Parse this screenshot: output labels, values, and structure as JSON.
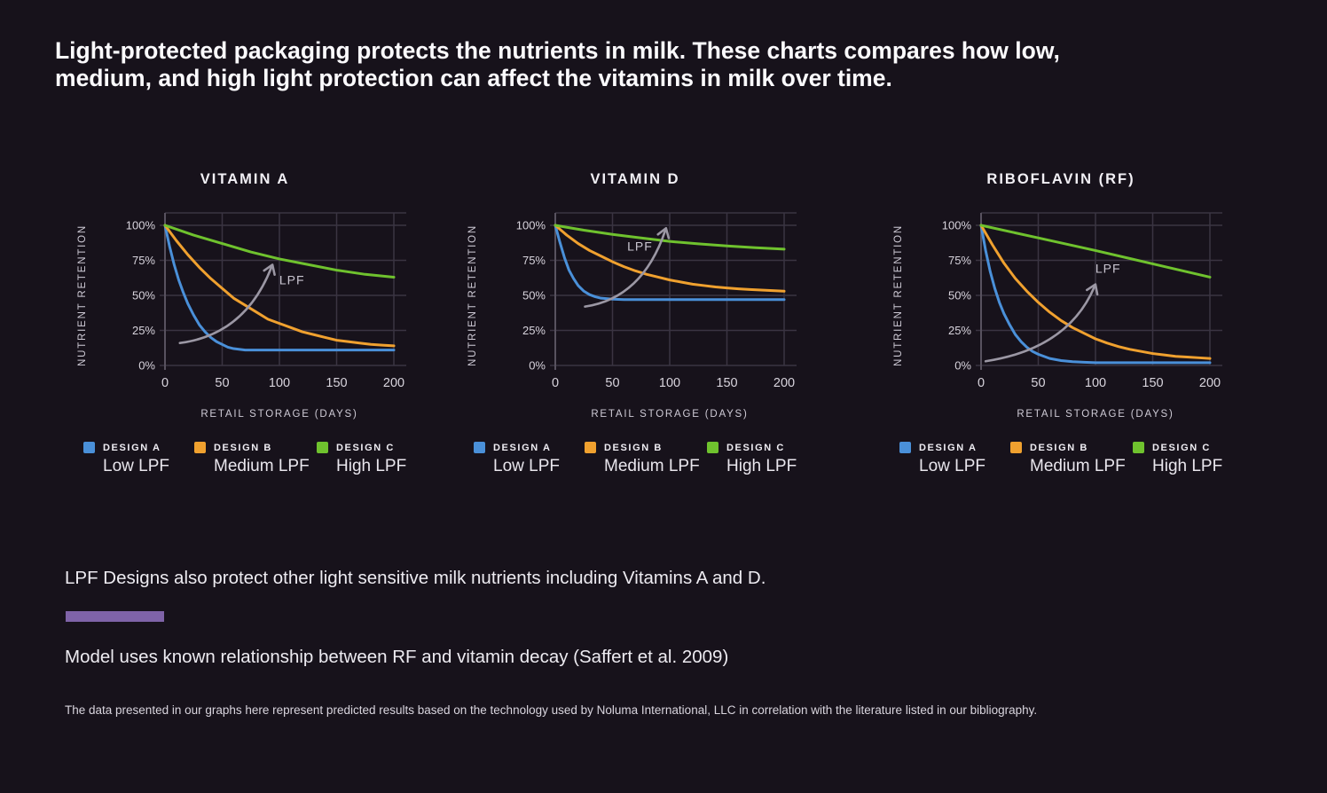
{
  "page": {
    "heading": "Light-protected packaging protects the nutrients in milk. These charts compares how low, medium, and high light protection can affect the vitamins in milk over time.",
    "note1": "LPF Designs also protect other light sensitive milk nutrients including Vitamins A and D.",
    "note2": "Model uses known relationship between RF and vitamin decay (Saffert et al. 2009)",
    "footnote": "The data presented in our graphs here  represent predicted results based on the technology used by Noluma International, LLC in correlation with the literature listed in our bibliography."
  },
  "colors": {
    "background": "#17121b",
    "grid": "#3a3442",
    "axis": "#58525f",
    "arrow": "#9b97a4",
    "accent_bar": "#7f63a8",
    "blue": "#4a90d9",
    "orange": "#f0a12f",
    "green": "#6fc22e",
    "text": "#f2f0f5"
  },
  "legend": [
    {
      "label": "DESIGN A",
      "sublabel": "Low LPF",
      "color": "#4a90d9"
    },
    {
      "label": "DESIGN B",
      "sublabel": "Medium LPF",
      "color": "#f0a12f"
    },
    {
      "label": "DESIGN C",
      "sublabel": "High LPF",
      "color": "#6fc22e"
    }
  ],
  "chart_data": [
    {
      "type": "line",
      "title": "VITAMIN A",
      "xlabel": "RETAIL STORAGE (DAYS)",
      "ylabel": "NUTRIENT RETENTION",
      "xlim": [
        0,
        200
      ],
      "ylim": [
        0,
        100
      ],
      "xticks": [
        0,
        50,
        100,
        150,
        200
      ],
      "ytick_values": [
        0,
        25,
        50,
        75,
        100
      ],
      "yticks": [
        "0%",
        "25%",
        "50%",
        "75%",
        "100%"
      ],
      "grid": true,
      "legend_position": "below",
      "annotation": {
        "label": "LPF",
        "arrow_from": [
          13,
          16
        ],
        "arrow_ctrl": [
          70,
          22
        ],
        "arrow_to": [
          93,
          70
        ],
        "label_pos": [
          111,
          58
        ],
        "label_anchor": "middle"
      },
      "series": [
        {
          "name": "DESIGN A (Low LPF)",
          "color": "#4a90d9",
          "points": [
            [
              0,
              100
            ],
            [
              4,
              85
            ],
            [
              8,
              72
            ],
            [
              12,
              61
            ],
            [
              16,
              52
            ],
            [
              20,
              44
            ],
            [
              25,
              36
            ],
            [
              30,
              29
            ],
            [
              35,
              24
            ],
            [
              40,
              20
            ],
            [
              45,
              17
            ],
            [
              50,
              15
            ],
            [
              55,
              13
            ],
            [
              60,
              12
            ],
            [
              70,
              11
            ],
            [
              80,
              11
            ],
            [
              100,
              11
            ],
            [
              125,
              11
            ],
            [
              150,
              11
            ],
            [
              175,
              11
            ],
            [
              200,
              11
            ]
          ]
        },
        {
          "name": "DESIGN B (Medium LPF)",
          "color": "#f0a12f",
          "points": [
            [
              0,
              100
            ],
            [
              10,
              89
            ],
            [
              20,
              79
            ],
            [
              30,
              70
            ],
            [
              40,
              62
            ],
            [
              50,
              55
            ],
            [
              60,
              48
            ],
            [
              70,
              43
            ],
            [
              80,
              38
            ],
            [
              90,
              33
            ],
            [
              100,
              30
            ],
            [
              110,
              27
            ],
            [
              120,
              24
            ],
            [
              130,
              22
            ],
            [
              140,
              20
            ],
            [
              150,
              18
            ],
            [
              160,
              17
            ],
            [
              170,
              16
            ],
            [
              180,
              15
            ],
            [
              190,
              14.5
            ],
            [
              200,
              14
            ]
          ]
        },
        {
          "name": "DESIGN C (High LPF)",
          "color": "#6fc22e",
          "points": [
            [
              0,
              100
            ],
            [
              25,
              93
            ],
            [
              50,
              87
            ],
            [
              75,
              81
            ],
            [
              100,
              76
            ],
            [
              125,
              72
            ],
            [
              150,
              68
            ],
            [
              175,
              65
            ],
            [
              200,
              63
            ]
          ]
        }
      ]
    },
    {
      "type": "line",
      "title": "VITAMIN D",
      "xlabel": "RETAIL STORAGE (DAYS)",
      "ylabel": "NUTRIENT RETENTION",
      "xlim": [
        0,
        200
      ],
      "ylim": [
        0,
        100
      ],
      "xticks": [
        0,
        50,
        100,
        150,
        200
      ],
      "ytick_values": [
        0,
        25,
        50,
        75,
        100
      ],
      "yticks": [
        "0%",
        "25%",
        "50%",
        "75%",
        "100%"
      ],
      "grid": true,
      "legend_position": "below",
      "annotation": {
        "label": "LPF",
        "arrow_from": [
          26,
          42
        ],
        "arrow_ctrl": [
          76,
          48
        ],
        "arrow_to": [
          96,
          96
        ],
        "label_pos": [
          74,
          82
        ],
        "label_anchor": "middle"
      },
      "series": [
        {
          "name": "DESIGN A (Low LPF)",
          "color": "#4a90d9",
          "points": [
            [
              0,
              100
            ],
            [
              4,
              88
            ],
            [
              8,
              77
            ],
            [
              12,
              68
            ],
            [
              16,
              62
            ],
            [
              20,
              57
            ],
            [
              25,
              53
            ],
            [
              30,
              50.5
            ],
            [
              35,
              49
            ],
            [
              40,
              48
            ],
            [
              50,
              47.3
            ],
            [
              60,
              47
            ],
            [
              80,
              47
            ],
            [
              100,
              47
            ],
            [
              150,
              47
            ],
            [
              200,
              47
            ]
          ]
        },
        {
          "name": "DESIGN B (Medium LPF)",
          "color": "#f0a12f",
          "points": [
            [
              0,
              100
            ],
            [
              10,
              93
            ],
            [
              20,
              87
            ],
            [
              30,
              82
            ],
            [
              40,
              78
            ],
            [
              50,
              74
            ],
            [
              60,
              70.5
            ],
            [
              70,
              67.5
            ],
            [
              80,
              65
            ],
            [
              90,
              63
            ],
            [
              100,
              61
            ],
            [
              110,
              59.5
            ],
            [
              120,
              58
            ],
            [
              130,
              57
            ],
            [
              140,
              56
            ],
            [
              150,
              55.3
            ],
            [
              160,
              54.7
            ],
            [
              170,
              54.2
            ],
            [
              180,
              53.8
            ],
            [
              190,
              53.4
            ],
            [
              200,
              53
            ]
          ]
        },
        {
          "name": "DESIGN C (High LPF)",
          "color": "#6fc22e",
          "points": [
            [
              0,
              100
            ],
            [
              25,
              96.5
            ],
            [
              50,
              93.5
            ],
            [
              75,
              91
            ],
            [
              100,
              88.5
            ],
            [
              125,
              86.8
            ],
            [
              150,
              85.3
            ],
            [
              175,
              84
            ],
            [
              200,
              83
            ]
          ]
        }
      ]
    },
    {
      "type": "line",
      "title": "RIBOFLAVIN (RF)",
      "xlabel": "RETAIL STORAGE (DAYS)",
      "ylabel": "NUTRIENT RETENTION",
      "xlim": [
        0,
        200
      ],
      "ylim": [
        0,
        100
      ],
      "xticks": [
        0,
        50,
        100,
        150,
        200
      ],
      "ytick_values": [
        0,
        25,
        50,
        75,
        100
      ],
      "yticks": [
        "0%",
        "25%",
        "50%",
        "75%",
        "100%"
      ],
      "grid": true,
      "legend_position": "below",
      "annotation": {
        "label": "LPF",
        "arrow_from": [
          4,
          3
        ],
        "arrow_ctrl": [
          76,
          12
        ],
        "arrow_to": [
          99,
          56
        ],
        "label_pos": [
          111,
          66
        ],
        "label_anchor": "middle"
      },
      "series": [
        {
          "name": "DESIGN A (Low LPF)",
          "color": "#4a90d9",
          "points": [
            [
              0,
              100
            ],
            [
              4,
              82
            ],
            [
              8,
              67
            ],
            [
              12,
              55
            ],
            [
              16,
              45
            ],
            [
              20,
              37
            ],
            [
              25,
              29
            ],
            [
              30,
              22
            ],
            [
              35,
              17
            ],
            [
              40,
              13
            ],
            [
              45,
              10
            ],
            [
              50,
              8
            ],
            [
              60,
              5
            ],
            [
              70,
              3.5
            ],
            [
              80,
              2.7
            ],
            [
              90,
              2.3
            ],
            [
              100,
              2
            ],
            [
              150,
              2
            ],
            [
              200,
              2
            ]
          ]
        },
        {
          "name": "DESIGN B (Medium LPF)",
          "color": "#f0a12f",
          "points": [
            [
              0,
              100
            ],
            [
              10,
              86
            ],
            [
              20,
              73
            ],
            [
              30,
              62
            ],
            [
              40,
              53
            ],
            [
              50,
              45
            ],
            [
              60,
              38
            ],
            [
              70,
              32
            ],
            [
              80,
              27
            ],
            [
              90,
              23
            ],
            [
              100,
              19
            ],
            [
              110,
              16
            ],
            [
              120,
              13.5
            ],
            [
              130,
              11.5
            ],
            [
              140,
              10
            ],
            [
              150,
              8.5
            ],
            [
              160,
              7.5
            ],
            [
              170,
              6.5
            ],
            [
              180,
              6
            ],
            [
              190,
              5.5
            ],
            [
              200,
              5
            ]
          ]
        },
        {
          "name": "DESIGN C (High LPF)",
          "color": "#6fc22e",
          "points": [
            [
              0,
              100
            ],
            [
              50,
              91
            ],
            [
              100,
              82
            ],
            [
              150,
              72.5
            ],
            [
              200,
              63
            ]
          ]
        }
      ]
    }
  ]
}
